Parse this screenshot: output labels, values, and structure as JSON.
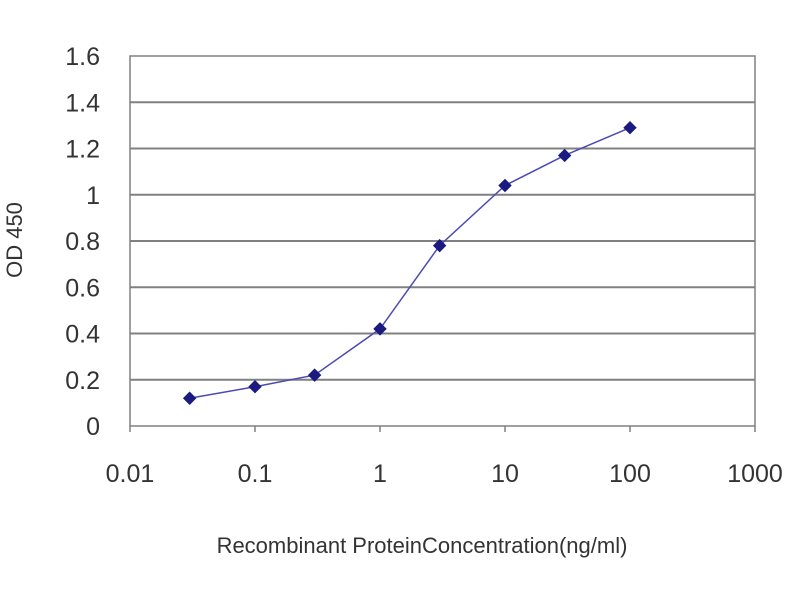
{
  "chart_data": {
    "type": "line",
    "title": "",
    "xlabel": "Recombinant ProteinConcentration(ng/ml)",
    "ylabel": "OD 450",
    "x_scale": "log",
    "xlim": [
      0.01,
      1000
    ],
    "ylim": [
      0,
      1.6
    ],
    "grid": true,
    "legend": "none",
    "x_tick_labels": [
      "0.01",
      "0.1",
      "1",
      "10",
      "100",
      "1000"
    ],
    "y_tick_labels": [
      "0",
      "0.2",
      "0.4",
      "0.6",
      "0.8",
      "1",
      "1.2",
      "1.4",
      "1.6"
    ],
    "series": [
      {
        "x": [
          0.03,
          0.1,
          0.3,
          1,
          3,
          10,
          30,
          100
        ],
        "y": [
          0.12,
          0.17,
          0.22,
          0.42,
          0.78,
          1.04,
          1.17,
          1.29
        ]
      }
    ],
    "colors": {
      "line": "#4b4bb0",
      "marker": "#1a1a80",
      "grid": "#808080",
      "frame": "#808080"
    }
  }
}
